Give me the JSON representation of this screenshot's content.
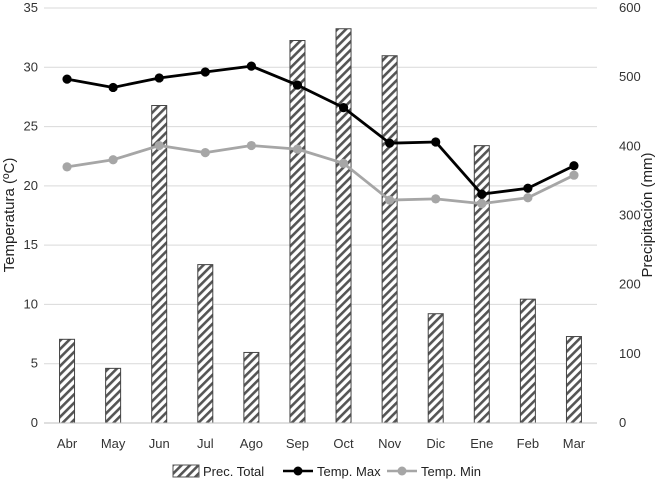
{
  "chart_data": {
    "type": "bar+line",
    "categories": [
      "Abr",
      "May",
      "Jun",
      "Jul",
      "Ago",
      "Sep",
      "Oct",
      "Nov",
      "Dic",
      "Ene",
      "Feb",
      "Mar"
    ],
    "ylabel_left": "Temperatura  (ºC)",
    "ylabel_right": "Precipitación (mm)",
    "ylim_left": [
      0,
      35
    ],
    "ylim_right": [
      0,
      600
    ],
    "yticks_left": [
      "0",
      "5",
      "10",
      "15",
      "20",
      "25",
      "30",
      "35"
    ],
    "yticks_right": [
      "0",
      "100",
      "200",
      "300",
      "400",
      "500",
      "600"
    ],
    "grid": "horizontal",
    "legend_position": "bottom",
    "series": [
      {
        "name": "Prec. Total",
        "kind": "bar",
        "axis": "right",
        "pattern": "diagonal-hatch",
        "values": [
          121,
          79,
          459,
          229,
          102,
          553,
          570,
          531,
          158,
          401,
          179,
          125
        ]
      },
      {
        "name": "Temp. Max",
        "kind": "line",
        "axis": "left",
        "color": "#000000",
        "values": [
          29.0,
          28.3,
          29.1,
          29.6,
          30.1,
          28.5,
          26.6,
          23.6,
          23.7,
          19.3,
          19.8,
          21.7
        ]
      },
      {
        "name": "Temp. Min",
        "kind": "line",
        "axis": "left",
        "color": "#a6a6a6",
        "values": [
          21.6,
          22.2,
          23.4,
          22.8,
          23.4,
          23.1,
          21.9,
          18.8,
          18.9,
          18.5,
          19.0,
          20.9
        ]
      }
    ]
  }
}
